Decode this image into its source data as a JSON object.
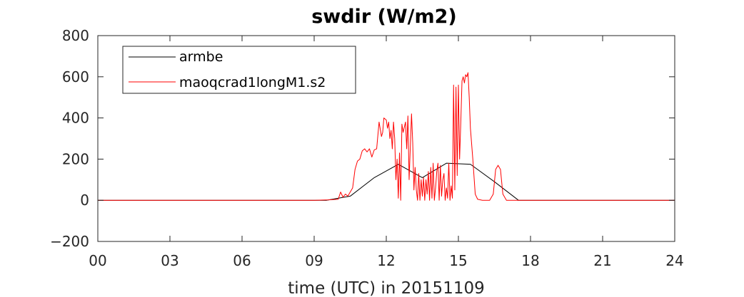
{
  "chart_data": {
    "type": "line",
    "title": "swdir  (W/m2)",
    "xlabel": "time (UTC) in 20151109",
    "ylabel": "",
    "xlim": [
      0,
      24
    ],
    "ylim": [
      -200,
      800
    ],
    "xticks": [
      0,
      3,
      6,
      9,
      12,
      15,
      18,
      21,
      24
    ],
    "xtick_labels": [
      "00",
      "03",
      "06",
      "09",
      "12",
      "15",
      "18",
      "21",
      "24"
    ],
    "yticks": [
      -200,
      0,
      200,
      400,
      600,
      800
    ],
    "ytick_labels": [
      "-200",
      "0",
      "200",
      "400",
      "600",
      "800"
    ],
    "grid": false,
    "legend_position": "top-left",
    "series": [
      {
        "name": "armbe",
        "color": "#000000",
        "x": [
          0,
          9.5,
          10.5,
          11.5,
          12.5,
          13.5,
          14.5,
          15.5,
          16.5,
          17.5,
          24
        ],
        "y": [
          0,
          0,
          20,
          110,
          175,
          110,
          180,
          175,
          90,
          0,
          0
        ]
      },
      {
        "name": "maoqcrad1longM1.s2",
        "color": "#ff0000",
        "x": [
          0,
          9.0,
          9.6,
          10.0,
          10.1,
          10.2,
          10.3,
          10.4,
          10.5,
          10.6,
          10.7,
          10.8,
          10.9,
          11.0,
          11.1,
          11.2,
          11.3,
          11.4,
          11.5,
          11.6,
          11.7,
          11.8,
          11.85,
          11.9,
          12.0,
          12.05,
          12.1,
          12.15,
          12.2,
          12.25,
          12.3,
          12.35,
          12.4,
          12.45,
          12.5,
          12.55,
          12.6,
          12.65,
          12.7,
          12.8,
          12.85,
          12.9,
          12.95,
          13.0,
          13.05,
          13.1,
          13.15,
          13.2,
          13.25,
          13.3,
          13.35,
          13.4,
          13.45,
          13.5,
          13.55,
          13.6,
          13.65,
          13.7,
          13.75,
          13.8,
          13.85,
          13.9,
          13.95,
          14.0,
          14.05,
          14.1,
          14.15,
          14.2,
          14.25,
          14.3,
          14.35,
          14.4,
          14.45,
          14.5,
          14.55,
          14.6,
          14.65,
          14.7,
          14.75,
          14.8,
          14.85,
          14.9,
          14.95,
          15.0,
          15.05,
          15.1,
          15.15,
          15.2,
          15.25,
          15.3,
          15.35,
          15.4,
          15.45,
          15.5,
          15.6,
          15.7,
          15.8,
          16.0,
          16.3,
          16.45,
          16.55,
          16.65,
          16.75,
          16.85,
          17.0,
          17.5,
          24
        ],
        "y": [
          0,
          0,
          2,
          5,
          40,
          15,
          30,
          20,
          40,
          60,
          150,
          190,
          200,
          240,
          250,
          235,
          250,
          210,
          245,
          250,
          380,
          310,
          330,
          400,
          390,
          350,
          380,
          300,
          340,
          250,
          380,
          300,
          100,
          200,
          10,
          230,
          0,
          370,
          330,
          380,
          250,
          410,
          100,
          260,
          420,
          280,
          50,
          160,
          50,
          0,
          130,
          0,
          100,
          20,
          110,
          0,
          100,
          30,
          140,
          0,
          160,
          10,
          180,
          0,
          60,
          140,
          180,
          0,
          170,
          20,
          100,
          130,
          0,
          60,
          10,
          180,
          0,
          70,
          10,
          560,
          50,
          550,
          120,
          560,
          200,
          380,
          580,
          600,
          570,
          610,
          600,
          620,
          500,
          350,
          200,
          30,
          5,
          0,
          0,
          30,
          150,
          170,
          150,
          30,
          0,
          0,
          0
        ]
      }
    ]
  }
}
